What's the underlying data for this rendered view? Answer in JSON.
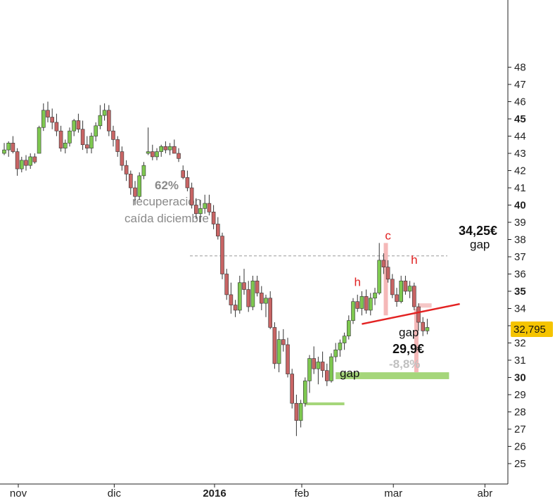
{
  "chart_data": {
    "type": "candlestick",
    "yaxis": {
      "position": "right",
      "ylim": [
        24,
        48.2
      ],
      "ticks": [
        25,
        26,
        27,
        28,
        29,
        30,
        31,
        32,
        33,
        34,
        35,
        36,
        37,
        38,
        39,
        40,
        41,
        42,
        43,
        44,
        45,
        46,
        47,
        48
      ],
      "bold_ticks": [
        30,
        35,
        40,
        45
      ]
    },
    "xaxis": {
      "ticks": [
        {
          "label": "nov",
          "day": 0,
          "bold": false
        },
        {
          "label": "dic",
          "day": 22,
          "bold": false
        },
        {
          "label": "2016",
          "day": 45,
          "bold": true
        },
        {
          "label": "feb",
          "day": 65,
          "bold": false
        },
        {
          "label": "mar",
          "day": 86,
          "bold": false
        },
        {
          "label": "abr",
          "day": 107,
          "bold": false
        }
      ]
    },
    "last_price": {
      "label": "32,795",
      "value": 32.795,
      "color": "#f5c400"
    },
    "colors": {
      "up": "#7ec850",
      "down": "#c86464",
      "wick": "#333333"
    },
    "candles": [
      [
        43,
        43.6,
        42.9,
        43.2
      ],
      [
        43.2,
        43.7,
        42.8,
        43.6
      ],
      [
        43.6,
        44.0,
        43.0,
        43.1
      ],
      [
        43.1,
        43.3,
        41.7,
        42.1
      ],
      [
        42.1,
        42.8,
        41.9,
        42.6
      ],
      [
        42.6,
        42.9,
        42.0,
        42.3
      ],
      [
        42.3,
        43.0,
        42.1,
        42.8
      ],
      [
        42.8,
        43.0,
        42.4,
        42.5
      ],
      [
        43.0,
        44.6,
        43.0,
        44.5
      ],
      [
        44.5,
        45.9,
        44.3,
        45.5
      ],
      [
        45.5,
        46.0,
        44.8,
        45.1
      ],
      [
        45.1,
        45.6,
        44.4,
        44.8
      ],
      [
        44.8,
        45.3,
        44.0,
        44.3
      ],
      [
        44.3,
        44.6,
        43.1,
        43.3
      ],
      [
        43.3,
        43.8,
        43.0,
        43.6
      ],
      [
        43.6,
        44.5,
        43.4,
        44.3
      ],
      [
        44.3,
        45.0,
        44.0,
        44.9
      ],
      [
        44.9,
        45.3,
        44.2,
        44.4
      ],
      [
        44.4,
        44.9,
        43.2,
        43.5
      ],
      [
        43.5,
        44.0,
        43.0,
        43.3
      ],
      [
        43.3,
        44.2,
        43.0,
        44.0
      ],
      [
        44.0,
        44.8,
        43.7,
        44.6
      ],
      [
        44.6,
        45.8,
        44.4,
        45.2
      ],
      [
        45.2,
        45.9,
        44.9,
        45.5
      ],
      [
        45.5,
        45.8,
        44.0,
        44.3
      ],
      [
        44.3,
        44.6,
        43.4,
        43.8
      ],
      [
        43.8,
        44.0,
        42.8,
        43.1
      ],
      [
        43.1,
        43.4,
        42.0,
        42.3
      ],
      [
        42.3,
        42.6,
        41.4,
        41.8
      ],
      [
        41.8,
        42.0,
        40.6,
        41.0
      ],
      [
        41.0,
        41.4,
        40.0,
        40.5
      ],
      [
        40.5,
        41.9,
        40.3,
        41.7
      ],
      [
        41.7,
        42.5,
        41.5,
        42.3
      ],
      [
        43.0,
        44.5,
        42.9,
        43.1
      ],
      [
        43.1,
        43.5,
        42.6,
        42.8
      ],
      [
        42.8,
        43.3,
        42.6,
        43.1
      ],
      [
        43.1,
        43.5,
        42.8,
        43.4
      ],
      [
        43.4,
        43.7,
        43.0,
        43.2
      ],
      [
        43.2,
        43.6,
        42.9,
        43.4
      ],
      [
        43.4,
        43.8,
        43.0,
        43.0
      ],
      [
        43.0,
        43.3,
        42.5,
        42.7
      ],
      [
        42.0,
        42.3,
        41.5,
        41.6
      ],
      [
        41.6,
        42.0,
        40.8,
        41.0
      ],
      [
        41.0,
        41.3,
        39.8,
        40.0
      ],
      [
        40.0,
        40.4,
        39.2,
        39.5
      ],
      [
        39.5,
        40.3,
        39.0,
        39.8
      ],
      [
        39.8,
        40.6,
        39.5,
        40.1
      ],
      [
        40.1,
        40.6,
        39.4,
        39.6
      ],
      [
        39.6,
        40.0,
        38.6,
        38.9
      ],
      [
        38.9,
        39.3,
        38.0,
        38.2
      ],
      [
        38.2,
        38.4,
        35.7,
        36.0
      ],
      [
        36.0,
        36.3,
        34.5,
        34.8
      ],
      [
        34.8,
        35.5,
        33.7,
        34.2
      ],
      [
        34.2,
        34.5,
        33.5,
        33.9
      ],
      [
        33.9,
        35.9,
        33.7,
        35.5
      ],
      [
        35.5,
        36.3,
        34.8,
        35.1
      ],
      [
        35.1,
        35.6,
        33.8,
        34.1
      ],
      [
        34.1,
        35.9,
        33.9,
        35.6
      ],
      [
        35.6,
        35.9,
        34.7,
        34.9
      ],
      [
        34.9,
        35.3,
        33.9,
        34.3
      ],
      [
        34.3,
        34.8,
        33.5,
        34.6
      ],
      [
        34.6,
        35.0,
        32.8,
        32.9
      ],
      [
        32.9,
        33.2,
        30.5,
        30.8
      ],
      [
        30.8,
        32.7,
        30.3,
        32.2
      ],
      [
        32.2,
        32.8,
        31.5,
        31.9
      ],
      [
        31.9,
        32.3,
        30.0,
        30.2
      ],
      [
        30.2,
        30.5,
        28.2,
        28.5
      ],
      [
        28.5,
        29.0,
        26.6,
        27.5
      ],
      [
        27.5,
        28.7,
        27.1,
        28.5
      ],
      [
        28.5,
        30.0,
        28.3,
        29.8
      ],
      [
        29.8,
        31.3,
        29.1,
        31.1
      ],
      [
        31.1,
        31.8,
        30.2,
        30.5
      ],
      [
        30.5,
        31.2,
        29.6,
        30.9
      ],
      [
        30.9,
        31.5,
        30.0,
        30.4
      ],
      [
        30.4,
        30.8,
        29.5,
        29.8
      ],
      [
        29.8,
        31.4,
        29.7,
        31.2
      ],
      [
        31.2,
        32.0,
        30.9,
        31.6
      ],
      [
        31.6,
        32.2,
        31.2,
        32.0
      ],
      [
        32.0,
        32.6,
        31.6,
        32.4
      ],
      [
        32.4,
        33.6,
        32.2,
        33.3
      ],
      [
        33.3,
        34.6,
        33.1,
        34.4
      ],
      [
        34.4,
        34.8,
        33.8,
        34.0
      ],
      [
        34.0,
        35.0,
        33.6,
        34.7
      ],
      [
        34.7,
        35.1,
        33.7,
        33.9
      ],
      [
        33.9,
        34.9,
        33.6,
        34.6
      ],
      [
        34.6,
        35.2,
        34.2,
        34.9
      ],
      [
        34.9,
        37.8,
        34.8,
        36.8
      ],
      [
        36.8,
        37.2,
        36.0,
        36.4
      ],
      [
        36.4,
        36.8,
        35.5,
        35.7
      ],
      [
        35.7,
        36.0,
        34.6,
        34.8
      ],
      [
        34.8,
        35.2,
        34.1,
        34.4
      ],
      [
        34.4,
        35.9,
        34.3,
        35.6
      ],
      [
        35.6,
        35.9,
        34.8,
        35.0
      ],
      [
        35.0,
        35.6,
        34.6,
        35.3
      ],
      [
        35.3,
        35.5,
        33.9,
        34.1
      ],
      [
        34.1,
        34.3,
        32.7,
        33.2
      ],
      [
        33.2,
        33.5,
        32.4,
        32.7
      ],
      [
        32.7,
        33.4,
        32.5,
        32.9
      ]
    ],
    "ref_line": {
      "value": 37.05,
      "label_pct": "62%",
      "label_1": "recuperación",
      "label_2": "caída diciembre",
      "color": "#999999"
    },
    "neckline": {
      "from": [
        82,
        33.1
      ],
      "to": [
        98,
        34.1
      ],
      "color": "#e32222"
    },
    "pattern_labels": [
      {
        "text": "h",
        "day": 81,
        "value": 35.3
      },
      {
        "text": "c",
        "day": 88,
        "value": 38.0
      },
      {
        "text": "h",
        "day": 94,
        "value": 36.6
      }
    ],
    "pink_bars": [
      {
        "day": 87.5,
        "from": 33.6,
        "to": 37.8
      },
      {
        "day": 94.5,
        "from": 30.3,
        "to": 34.0
      }
    ],
    "gap_zones": [
      {
        "from_day": 95,
        "to_day": 98,
        "low": 34.05,
        "high": 34.3,
        "color": "#f5c6c6"
      },
      {
        "from_day": 76,
        "to_day": 102,
        "low": 29.9,
        "high": 30.3,
        "color": "#a5d67a"
      },
      {
        "from_day": 69,
        "to_day": 78,
        "low": 28.4,
        "high": 28.55,
        "color": "#a5d67a"
      }
    ],
    "annotations": {
      "target_top": "34,25€",
      "gap_top": "gap",
      "gap_mid": "gap",
      "target_mid": "29,9€",
      "pct_mid": "-8,8%",
      "gap_low": "gap"
    }
  }
}
